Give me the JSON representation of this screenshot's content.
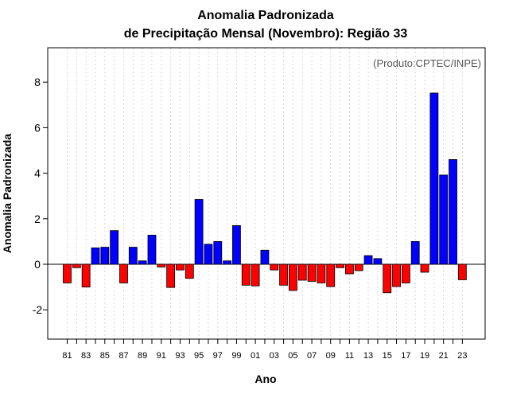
{
  "chart_data": {
    "type": "bar",
    "title": "Anomalia Padronizada",
    "subtitle": "de Precipitação Mensal (Novembro): Região 33",
    "xlabel": "Ano",
    "ylabel": "Anomalia Padronizada",
    "credit": "(Produto:CPTEC/INPE)",
    "ylim": [
      -3.2,
      9.6
    ],
    "yticks": [
      -2,
      0,
      2,
      4,
      6,
      8
    ],
    "positive_color": "#0000ff",
    "negative_color": "#ff0000",
    "x_tick_labels": [
      "81",
      "83",
      "85",
      "87",
      "89",
      "91",
      "93",
      "95",
      "97",
      "99",
      "01",
      "03",
      "05",
      "07",
      "09",
      "11",
      "13",
      "15",
      "17",
      "19",
      "21",
      "23"
    ],
    "categories": [
      "81",
      "82",
      "83",
      "84",
      "85",
      "86",
      "87",
      "88",
      "89",
      "90",
      "91",
      "92",
      "93",
      "94",
      "95",
      "96",
      "97",
      "98",
      "99",
      "00",
      "01",
      "02",
      "03",
      "04",
      "05",
      "06",
      "07",
      "08",
      "09",
      "10",
      "11",
      "12",
      "13",
      "14",
      "15",
      "16",
      "17",
      "18",
      "19",
      "20",
      "21",
      "22",
      "23"
    ],
    "values": [
      -0.82,
      -0.15,
      -1.0,
      0.72,
      0.75,
      1.48,
      -0.82,
      0.75,
      0.15,
      1.28,
      -0.12,
      -1.02,
      -0.25,
      -0.62,
      2.85,
      0.88,
      1.0,
      0.15,
      1.7,
      -0.92,
      -0.95,
      0.62,
      -0.25,
      -0.92,
      -1.15,
      -0.7,
      -0.75,
      -0.82,
      -0.98,
      -0.15,
      -0.42,
      -0.28,
      0.38,
      0.25,
      -1.25,
      -0.98,
      -0.82,
      1.0,
      -0.35,
      7.52,
      3.92,
      4.6,
      -0.68
    ]
  }
}
